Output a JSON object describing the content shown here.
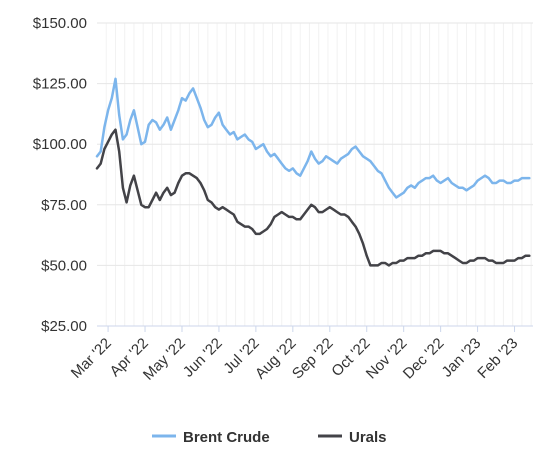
{
  "chart_data": {
    "type": "line",
    "title": "",
    "xlabel": "",
    "ylabel": "",
    "ylim": [
      25,
      150
    ],
    "y_ticks": [
      "$150.00",
      "$125.00",
      "$100.00",
      "$75.00",
      "$50.00",
      "$25.00"
    ],
    "y_tick_values": [
      150,
      125,
      100,
      75,
      50,
      25
    ],
    "x_ticks": [
      "Mar '22",
      "Apr '22",
      "May '22",
      "Jun '22",
      "Jul '22",
      "Aug '22",
      "Sep '22",
      "Oct '22",
      "Nov '22",
      "Dec '22",
      "Jan '23",
      "Feb '23"
    ],
    "grid": true,
    "legend_position": "bottom",
    "series": [
      {
        "name": "Brent Crude",
        "color": "#7cb5ec",
        "x": [
          0,
          0.1,
          0.2,
          0.3,
          0.4,
          0.5,
          0.6,
          0.7,
          0.8,
          0.9,
          1,
          1.1,
          1.2,
          1.3,
          1.4,
          1.5,
          1.6,
          1.7,
          1.8,
          1.9,
          2,
          2.1,
          2.2,
          2.3,
          2.4,
          2.5,
          2.6,
          2.7,
          2.8,
          2.9,
          3,
          3.1,
          3.2,
          3.3,
          3.4,
          3.5,
          3.6,
          3.7,
          3.8,
          3.9,
          4,
          4.1,
          4.2,
          4.3,
          4.4,
          4.5,
          4.6,
          4.7,
          4.8,
          4.9,
          5,
          5.1,
          5.2,
          5.3,
          5.4,
          5.5,
          5.6,
          5.7,
          5.8,
          5.9,
          6,
          6.1,
          6.2,
          6.3,
          6.4,
          6.5,
          6.6,
          6.7,
          6.8,
          6.9,
          7,
          7.1,
          7.2,
          7.3,
          7.4,
          7.5,
          7.6,
          7.7,
          7.8,
          7.9,
          8,
          8.1,
          8.2,
          8.3,
          8.4,
          8.5,
          8.6,
          8.7,
          8.8,
          8.9,
          9,
          9.1,
          9.2,
          9.3,
          9.4,
          9.5,
          9.6,
          9.7,
          9.8,
          9.9,
          10,
          10.1,
          10.2,
          10.3,
          10.4,
          10.5,
          10.6,
          10.7,
          10.8,
          10.9,
          11,
          11.1,
          11.2,
          11.3,
          11.4,
          11.5,
          11.6,
          11.7
        ],
        "values": [
          95,
          97,
          107,
          114,
          119,
          127,
          112,
          102,
          104,
          110,
          114,
          107,
          100,
          101,
          108,
          110,
          109,
          106,
          108,
          111,
          106,
          110,
          114,
          119,
          118,
          121,
          123,
          119,
          115,
          110,
          107,
          108,
          111,
          113,
          108,
          106,
          104,
          105,
          102,
          103,
          104,
          102,
          101,
          98,
          99,
          100,
          97,
          95,
          96,
          94,
          92,
          90,
          89,
          90,
          88,
          87,
          90,
          93,
          97,
          94,
          92,
          93,
          95,
          94,
          93,
          92,
          94,
          95,
          96,
          98,
          99,
          97,
          95,
          94,
          93,
          91,
          89,
          88,
          85,
          82,
          80,
          78,
          79,
          80,
          82,
          83,
          82,
          84,
          85,
          86,
          86,
          87,
          85,
          84,
          85,
          86,
          84,
          83,
          82,
          82,
          81,
          82,
          83,
          85,
          86,
          87,
          86,
          84,
          84,
          85,
          85,
          84,
          84,
          85,
          85,
          86,
          86,
          86
        ]
      },
      {
        "name": "Urals",
        "color": "#434348",
        "x": [
          0,
          0.1,
          0.2,
          0.3,
          0.4,
          0.5,
          0.6,
          0.7,
          0.8,
          0.9,
          1,
          1.1,
          1.2,
          1.3,
          1.4,
          1.5,
          1.6,
          1.7,
          1.8,
          1.9,
          2,
          2.1,
          2.2,
          2.3,
          2.4,
          2.5,
          2.6,
          2.7,
          2.8,
          2.9,
          3,
          3.1,
          3.2,
          3.3,
          3.4,
          3.5,
          3.6,
          3.7,
          3.8,
          3.9,
          4,
          4.1,
          4.2,
          4.3,
          4.4,
          4.5,
          4.6,
          4.7,
          4.8,
          4.9,
          5,
          5.1,
          5.2,
          5.3,
          5.4,
          5.5,
          5.6,
          5.7,
          5.8,
          5.9,
          6,
          6.1,
          6.2,
          6.3,
          6.4,
          6.5,
          6.6,
          6.7,
          6.8,
          6.9,
          7,
          7.1,
          7.2,
          7.3,
          7.4,
          7.5,
          7.6,
          7.7,
          7.8,
          7.9,
          8,
          8.1,
          8.2,
          8.3,
          8.4,
          8.5,
          8.6,
          8.7,
          8.8,
          8.9,
          9,
          9.1,
          9.2,
          9.3,
          9.4,
          9.5,
          9.6,
          9.7,
          9.8,
          9.9,
          10,
          10.1,
          10.2,
          10.3,
          10.4,
          10.5,
          10.6,
          10.7,
          10.8,
          10.9,
          11,
          11.1,
          11.2,
          11.3,
          11.4,
          11.5,
          11.6,
          11.7
        ],
        "values": [
          90,
          92,
          98,
          101,
          104,
          106,
          97,
          82,
          76,
          83,
          87,
          81,
          75,
          74,
          74,
          77,
          80,
          77,
          80,
          82,
          79,
          80,
          84,
          87,
          88,
          88,
          87,
          86,
          84,
          81,
          77,
          76,
          74,
          73,
          74,
          73,
          72,
          71,
          68,
          67,
          66,
          66,
          65,
          63,
          63,
          64,
          65,
          67,
          70,
          71,
          72,
          71,
          70,
          70,
          69,
          69,
          71,
          73,
          75,
          74,
          72,
          72,
          73,
          74,
          73,
          72,
          71,
          71,
          70,
          68,
          66,
          63,
          59,
          54,
          50,
          50,
          50,
          51,
          51,
          50,
          51,
          51,
          52,
          52,
          53,
          53,
          53,
          54,
          54,
          55,
          55,
          56,
          56,
          56,
          55,
          55,
          54,
          53,
          52,
          51,
          51,
          52,
          52,
          53,
          53,
          53,
          52,
          52,
          51,
          51,
          51,
          52,
          52,
          52,
          53,
          53,
          54,
          54
        ]
      }
    ]
  }
}
